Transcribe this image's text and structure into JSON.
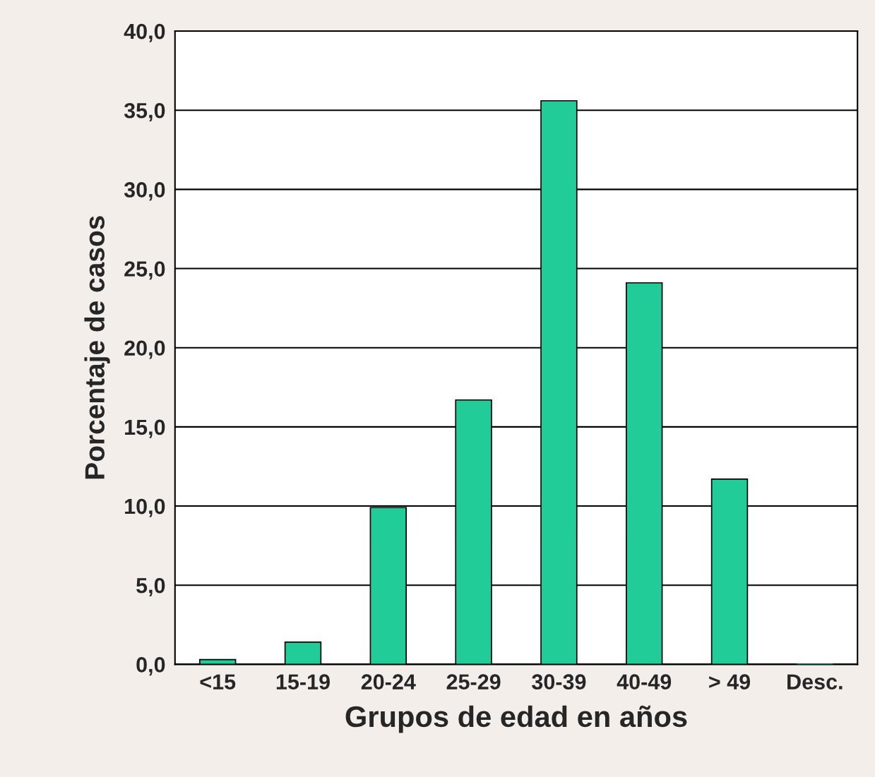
{
  "chart_data": {
    "type": "bar",
    "xlabel": "Grupos de edad en años",
    "ylabel": "Porcentaje de casos",
    "categories": [
      "<15",
      "15-19",
      "20-24",
      "25-29",
      "30-39",
      "40-49",
      "> 49",
      "Desc."
    ],
    "values": [
      0.3,
      1.4,
      9.9,
      16.7,
      35.6,
      24.1,
      11.7,
      0.0
    ],
    "color": "#22cc99",
    "ylim": [
      0,
      40
    ],
    "yticks": [
      {
        "value": 0,
        "label": "0,0"
      },
      {
        "value": 5,
        "label": "5,0"
      },
      {
        "value": 10,
        "label": "10,0"
      },
      {
        "value": 15,
        "label": "15,0"
      },
      {
        "value": 20,
        "label": "20,0"
      },
      {
        "value": 25,
        "label": "25,0"
      },
      {
        "value": 30,
        "label": "30,0"
      },
      {
        "value": 35,
        "label": "35,0"
      },
      {
        "value": 40,
        "label": "40,0"
      }
    ],
    "grid": "y"
  }
}
